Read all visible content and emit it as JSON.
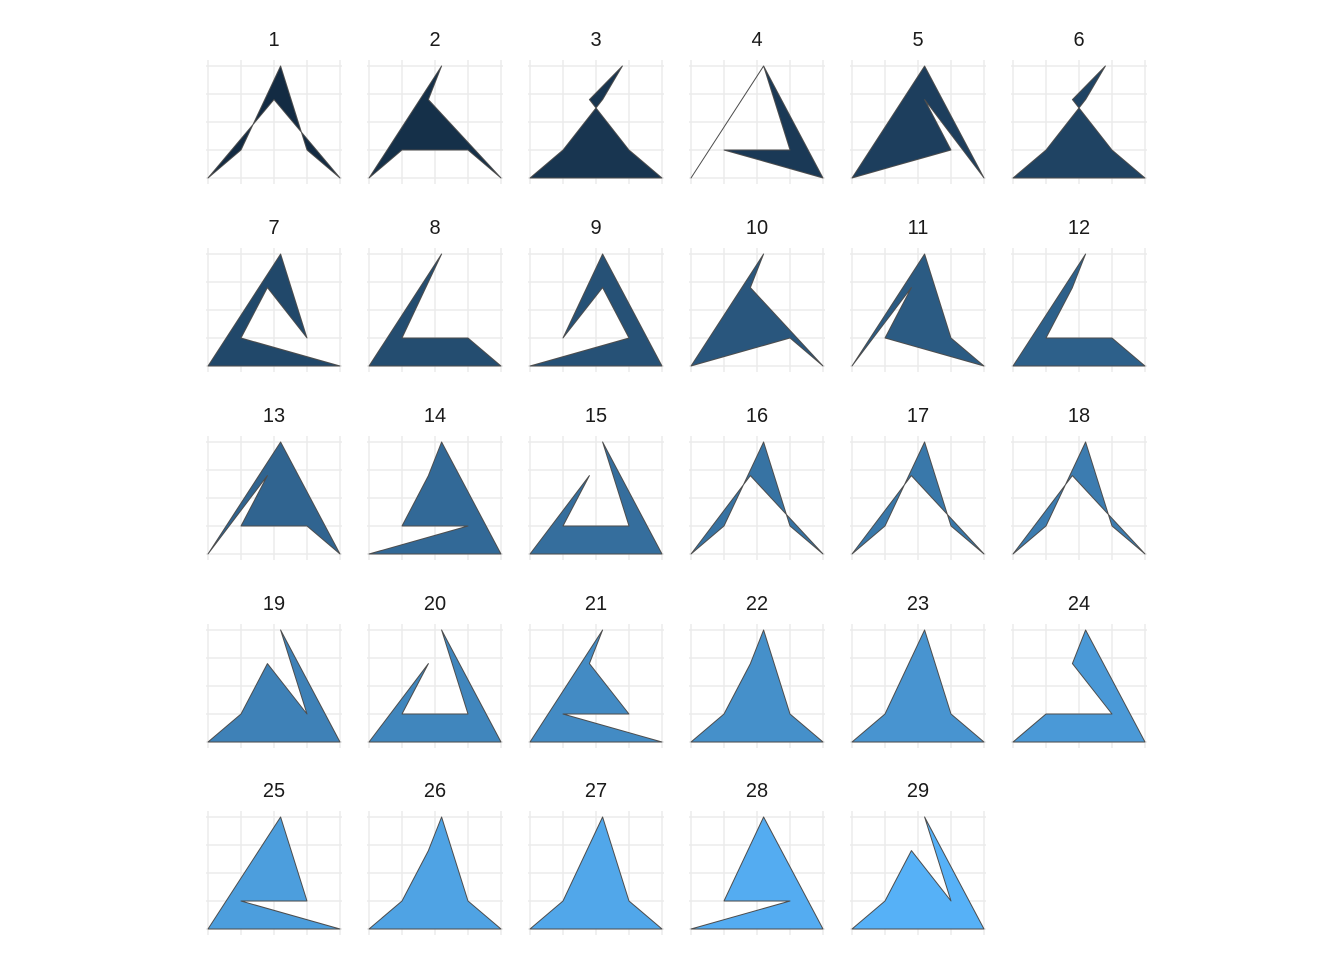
{
  "chart_data": {
    "type": "polygon-facets",
    "title": "",
    "xlabel": "",
    "ylabel": "",
    "xlim": [
      0,
      10
    ],
    "ylim": [
      0,
      10
    ],
    "grid": true,
    "legend": "none",
    "fill_scale": [
      "#132b43",
      "#56b1f7"
    ],
    "stroke_color": "#4d4d4d",
    "facets": [
      {
        "label": "1",
        "points": [
          [
            0,
            0
          ],
          [
            2.5,
            2.5
          ],
          [
            5.5,
            10
          ],
          [
            7.5,
            2.5
          ],
          [
            10,
            0
          ],
          [
            5,
            7
          ],
          [
            0,
            0
          ]
        ]
      },
      {
        "label": "2",
        "points": [
          [
            0,
            0
          ],
          [
            2.5,
            2.5
          ],
          [
            7.5,
            2.5
          ],
          [
            10,
            0
          ],
          [
            4.5,
            7
          ],
          [
            5.5,
            10
          ],
          [
            0,
            0
          ]
        ]
      },
      {
        "label": "3",
        "points": [
          [
            0,
            0
          ],
          [
            2.5,
            2.5
          ],
          [
            5.5,
            7
          ],
          [
            7,
            10
          ],
          [
            4.5,
            7
          ],
          [
            7.5,
            2.5
          ],
          [
            10,
            0
          ],
          [
            0,
            0
          ]
        ]
      },
      {
        "label": "4",
        "points": [
          [
            0,
            0
          ],
          [
            5.5,
            10
          ],
          [
            10,
            0
          ],
          [
            2.5,
            2.5
          ],
          [
            7.5,
            2.5
          ],
          [
            5.5,
            10
          ],
          [
            0,
            0
          ]
        ]
      },
      {
        "label": "5",
        "points": [
          [
            0,
            0
          ],
          [
            5.5,
            10
          ],
          [
            10,
            0
          ],
          [
            5.5,
            7
          ],
          [
            7.5,
            2.5
          ],
          [
            0,
            0
          ]
        ]
      },
      {
        "label": "6",
        "points": [
          [
            0,
            0
          ],
          [
            2.5,
            2.5
          ],
          [
            5.5,
            7
          ],
          [
            7,
            10
          ],
          [
            4.5,
            7
          ],
          [
            7.5,
            2.5
          ],
          [
            10,
            0
          ],
          [
            0,
            0
          ]
        ]
      },
      {
        "label": "7",
        "points": [
          [
            0,
            0
          ],
          [
            5.5,
            10
          ],
          [
            7.5,
            2.5
          ],
          [
            4.5,
            7
          ],
          [
            2.5,
            2.5
          ],
          [
            10,
            0
          ],
          [
            0,
            0
          ]
        ]
      },
      {
        "label": "8",
        "points": [
          [
            0,
            0
          ],
          [
            5.5,
            10
          ],
          [
            2.5,
            2.5
          ],
          [
            7.5,
            2.5
          ],
          [
            10,
            0
          ],
          [
            0,
            0
          ]
        ]
      },
      {
        "label": "9",
        "points": [
          [
            0,
            0
          ],
          [
            7.5,
            2.5
          ],
          [
            5.5,
            7
          ],
          [
            2.5,
            2.5
          ],
          [
            5.5,
            10
          ],
          [
            10,
            0
          ],
          [
            0,
            0
          ]
        ]
      },
      {
        "label": "10",
        "points": [
          [
            0,
            0
          ],
          [
            7.5,
            2.5
          ],
          [
            10,
            0
          ],
          [
            4.5,
            7
          ],
          [
            5.5,
            10
          ],
          [
            0,
            0
          ]
        ]
      },
      {
        "label": "11",
        "points": [
          [
            0,
            0
          ],
          [
            5.5,
            10
          ],
          [
            7.5,
            2.5
          ],
          [
            10,
            0
          ],
          [
            2.5,
            2.5
          ],
          [
            4.5,
            7
          ],
          [
            0,
            0
          ]
        ]
      },
      {
        "label": "12",
        "points": [
          [
            0,
            0
          ],
          [
            5.5,
            10
          ],
          [
            4.5,
            7
          ],
          [
            2.5,
            2.5
          ],
          [
            7.5,
            2.5
          ],
          [
            10,
            0
          ],
          [
            0,
            0
          ]
        ]
      },
      {
        "label": "13",
        "points": [
          [
            0,
            0
          ],
          [
            4.5,
            7
          ],
          [
            2.5,
            2.5
          ],
          [
            7.5,
            2.5
          ],
          [
            10,
            0
          ],
          [
            5.5,
            10
          ],
          [
            0,
            0
          ]
        ]
      },
      {
        "label": "14",
        "points": [
          [
            0,
            0
          ],
          [
            7.5,
            2.5
          ],
          [
            2.5,
            2.5
          ],
          [
            4.5,
            7
          ],
          [
            5.5,
            10
          ],
          [
            10,
            0
          ],
          [
            0,
            0
          ]
        ]
      },
      {
        "label": "15",
        "points": [
          [
            0,
            0
          ],
          [
            4.5,
            7
          ],
          [
            2.5,
            2.5
          ],
          [
            7.5,
            2.5
          ],
          [
            5.5,
            10
          ],
          [
            10,
            0
          ],
          [
            0,
            0
          ]
        ]
      },
      {
        "label": "16",
        "points": [
          [
            0,
            0
          ],
          [
            2.5,
            2.5
          ],
          [
            5.5,
            10
          ],
          [
            7.5,
            2.5
          ],
          [
            10,
            0
          ],
          [
            4.5,
            7
          ],
          [
            0,
            0
          ]
        ]
      },
      {
        "label": "17",
        "points": [
          [
            0,
            0
          ],
          [
            2.5,
            2.5
          ],
          [
            5.5,
            10
          ],
          [
            7.5,
            2.5
          ],
          [
            10,
            0
          ],
          [
            4.5,
            7
          ],
          [
            0,
            0
          ]
        ]
      },
      {
        "label": "18",
        "points": [
          [
            0,
            0
          ],
          [
            2.5,
            2.5
          ],
          [
            5.5,
            10
          ],
          [
            7.5,
            2.5
          ],
          [
            10,
            0
          ],
          [
            4.5,
            7
          ],
          [
            0,
            0
          ]
        ]
      },
      {
        "label": "19",
        "points": [
          [
            0,
            0
          ],
          [
            2.5,
            2.5
          ],
          [
            4.5,
            7
          ],
          [
            7.5,
            2.5
          ],
          [
            5.5,
            10
          ],
          [
            10,
            0
          ],
          [
            0,
            0
          ]
        ]
      },
      {
        "label": "20",
        "points": [
          [
            0,
            0
          ],
          [
            4.5,
            7
          ],
          [
            2.5,
            2.5
          ],
          [
            7.5,
            2.5
          ],
          [
            5.5,
            10
          ],
          [
            10,
            0
          ],
          [
            0,
            0
          ]
        ]
      },
      {
        "label": "21",
        "points": [
          [
            0,
            0
          ],
          [
            5.5,
            10
          ],
          [
            4.5,
            7
          ],
          [
            7.5,
            2.5
          ],
          [
            2.5,
            2.5
          ],
          [
            10,
            0
          ],
          [
            0,
            0
          ]
        ]
      },
      {
        "label": "22",
        "points": [
          [
            0,
            0
          ],
          [
            2.5,
            2.5
          ],
          [
            4.5,
            7
          ],
          [
            5.5,
            10
          ],
          [
            7.5,
            2.5
          ],
          [
            10,
            0
          ],
          [
            0,
            0
          ]
        ]
      },
      {
        "label": "23",
        "points": [
          [
            0,
            0
          ],
          [
            2.5,
            2.5
          ],
          [
            5.5,
            10
          ],
          [
            7.5,
            2.5
          ],
          [
            10,
            0
          ],
          [
            0,
            0
          ]
        ]
      },
      {
        "label": "24",
        "points": [
          [
            0,
            0
          ],
          [
            2.5,
            2.5
          ],
          [
            7.5,
            2.5
          ],
          [
            4.5,
            7
          ],
          [
            5.5,
            10
          ],
          [
            10,
            0
          ],
          [
            0,
            0
          ]
        ]
      },
      {
        "label": "25",
        "points": [
          [
            0,
            0
          ],
          [
            5.5,
            10
          ],
          [
            7.5,
            2.5
          ],
          [
            2.5,
            2.5
          ],
          [
            10,
            0
          ],
          [
            0,
            0
          ]
        ]
      },
      {
        "label": "26",
        "points": [
          [
            0,
            0
          ],
          [
            2.5,
            2.5
          ],
          [
            4.5,
            7
          ],
          [
            5.5,
            10
          ],
          [
            7.5,
            2.5
          ],
          [
            10,
            0
          ],
          [
            0,
            0
          ]
        ]
      },
      {
        "label": "27",
        "points": [
          [
            0,
            0
          ],
          [
            2.5,
            2.5
          ],
          [
            5.5,
            10
          ],
          [
            7.5,
            2.5
          ],
          [
            10,
            0
          ],
          [
            0,
            0
          ]
        ]
      },
      {
        "label": "28",
        "points": [
          [
            0,
            0
          ],
          [
            7.5,
            2.5
          ],
          [
            2.5,
            2.5
          ],
          [
            5.5,
            10
          ],
          [
            10,
            0
          ],
          [
            0,
            0
          ]
        ]
      },
      {
        "label": "29",
        "points": [
          [
            0,
            0
          ],
          [
            2.5,
            2.5
          ],
          [
            4.5,
            7
          ],
          [
            7.5,
            2.5
          ],
          [
            5.5,
            10
          ],
          [
            10,
            0
          ],
          [
            0,
            0
          ]
        ]
      }
    ]
  }
}
